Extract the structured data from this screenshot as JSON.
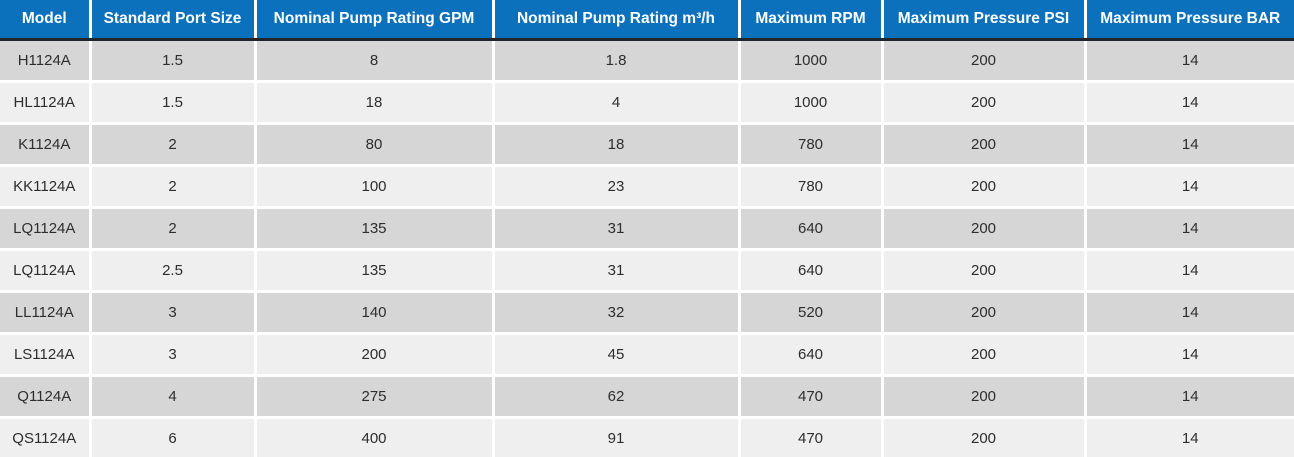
{
  "chart_data": {
    "type": "table",
    "columns": [
      "Model",
      "Standard Port Size",
      "Nominal Pump Rating GPM",
      "Nominal Pump Rating m³/h",
      "Maximum RPM",
      "Maximum Pressure PSI",
      "Maximum Pressure BAR"
    ],
    "rows": [
      [
        "H1124A",
        "1.5",
        "8",
        "1.8",
        "1000",
        "200",
        "14"
      ],
      [
        "HL1124A",
        "1.5",
        "18",
        "4",
        "1000",
        "200",
        "14"
      ],
      [
        "K1124A",
        "2",
        "80",
        "18",
        "780",
        "200",
        "14"
      ],
      [
        "KK1124A",
        "2",
        "100",
        "23",
        "780",
        "200",
        "14"
      ],
      [
        "LQ1124A",
        "2",
        "135",
        "31",
        "640",
        "200",
        "14"
      ],
      [
        "LQ1124A",
        "2.5",
        "135",
        "31",
        "640",
        "200",
        "14"
      ],
      [
        "LL1124A",
        "3",
        "140",
        "32",
        "520",
        "200",
        "14"
      ],
      [
        "LS1124A",
        "3",
        "200",
        "45",
        "640",
        "200",
        "14"
      ],
      [
        "Q1124A",
        "4",
        "275",
        "62",
        "470",
        "200",
        "14"
      ],
      [
        "QS1124A",
        "6",
        "400",
        "91",
        "470",
        "200",
        "14"
      ]
    ],
    "layout_hints": {
      "header_position": "top",
      "zebra_striping": true,
      "cell_alignment": "center",
      "grid": "white dividers between cells, dark rule under header"
    }
  },
  "colors": {
    "header_bg": "#0c71bd",
    "header_text": "#ffffff",
    "header_underline": "#20242b",
    "row_odd_bg": "#d6d6d6",
    "row_even_bg": "#efefef",
    "divider": "#ffffff",
    "cell_text": "#2d2d2d"
  }
}
